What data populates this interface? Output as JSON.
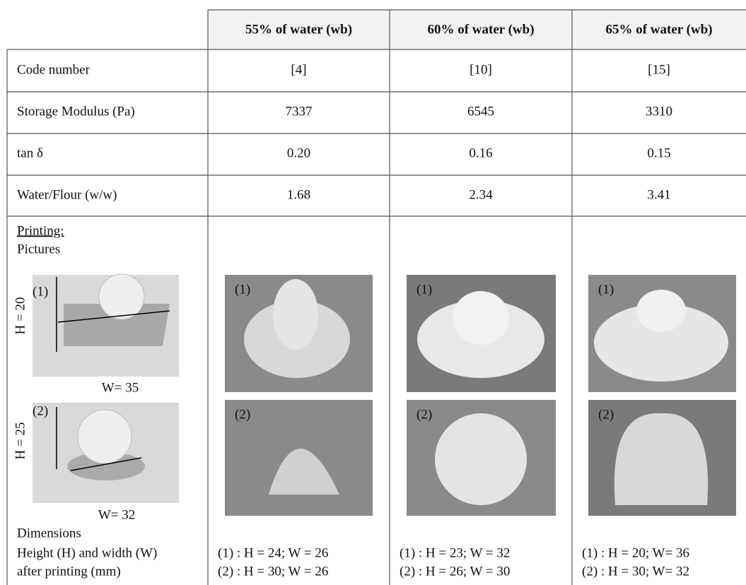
{
  "table": {
    "header": [
      "55% of water (wb)",
      "60% of water (wb)",
      "65% of water (wb)"
    ],
    "rows": [
      [
        "Code number",
        "[4]",
        "[10]",
        "[15]"
      ],
      [
        "Storage Modulus (Pa)",
        "7337",
        "6545",
        "3310"
      ],
      [
        "tan δ",
        "0.20",
        "0.16",
        "0.15"
      ],
      [
        "Water/Flour (w/w)",
        "1.68",
        "2.34",
        "3.41"
      ]
    ]
  },
  "printing": {
    "title": "Printing:",
    "subtitle": "Pictures",
    "models": [
      {
        "label": "(1)",
        "height": "H = 20",
        "width": "W= 35"
      },
      {
        "label": "(2)",
        "height": "H = 25",
        "width": "W= 32"
      }
    ],
    "dimensions_title": [
      "Dimensions",
      "Height (H) and width (W)",
      "after printing (mm)"
    ],
    "columns": [
      {
        "photo_labels": [
          "(1)",
          "(2)"
        ],
        "dimensions": [
          "(1) : H = 24; W = 26",
          "(2) : H = 30; W = 26"
        ]
      },
      {
        "photo_labels": [
          "(1)",
          "(2)"
        ],
        "dimensions": [
          "(1) : H = 23; W = 32",
          "(2) : H = 26; W = 30"
        ]
      },
      {
        "photo_labels": [
          "(1)",
          "(2)"
        ],
        "dimensions": [
          "(1) : H = 20; W= 36",
          "(2) : H = 30; W= 32"
        ]
      }
    ]
  }
}
